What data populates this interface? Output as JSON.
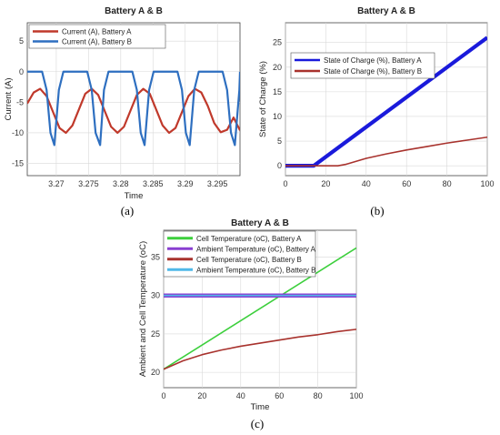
{
  "chart_data": [
    {
      "panel_label": "(a)",
      "type": "line",
      "title": "Battery A & B",
      "xlabel": "Time",
      "ylabel": "Current (A)",
      "xlim": [
        3.2655,
        3.2985
      ],
      "ylim": [
        -17,
        8
      ],
      "xticks": [
        "3.27",
        "3.275",
        "3.28",
        "3.285",
        "3.29",
        "3.295"
      ],
      "yticks": [
        "5",
        "0",
        "-5",
        "-10",
        "-15"
      ],
      "grid": true,
      "legend_position": "top-left",
      "series": [
        {
          "name": "Current (A), Battery A",
          "color": "#c0392b",
          "x": [
            3.2655,
            3.2665,
            3.2675,
            3.2685,
            3.2695,
            3.2705,
            3.2715,
            3.2725,
            3.2735,
            3.2745,
            3.2755,
            3.2765,
            3.2775,
            3.2785,
            3.2795,
            3.2805,
            3.2815,
            3.2825,
            3.2835,
            3.2845,
            3.2855,
            3.2865,
            3.2875,
            3.2885,
            3.2895,
            3.2905,
            3.2915,
            3.2925,
            3.2935,
            3.2945,
            3.2955,
            3.2965,
            3.2975,
            3.2985
          ],
          "y": [
            -5.2,
            -3.4,
            -2.8,
            -4.0,
            -6.6,
            -9.2,
            -10.0,
            -8.8,
            -6.2,
            -3.6,
            -2.8,
            -3.8,
            -6.4,
            -9.0,
            -10.0,
            -9.0,
            -6.4,
            -3.8,
            -2.8,
            -3.6,
            -6.2,
            -8.8,
            -10.0,
            -9.2,
            -6.6,
            -4.0,
            -2.8,
            -3.4,
            -5.6,
            -8.4,
            -9.9,
            -9.5,
            -7.5,
            -9.6
          ]
        },
        {
          "name": "Current (A), Battery B",
          "color": "#2e6fc0",
          "x": [
            3.2655,
            3.2665,
            3.2678,
            3.2685,
            3.2691,
            3.2697,
            3.2704,
            3.2711,
            3.2735,
            3.2748,
            3.2755,
            3.2761,
            3.2768,
            3.2774,
            3.2781,
            3.2805,
            3.2818,
            3.2825,
            3.2831,
            3.2837,
            3.2844,
            3.2851,
            3.2875,
            3.2888,
            3.2895,
            3.2901,
            3.2907,
            3.2914,
            3.2921,
            3.2945,
            3.2958,
            3.2965,
            3.2971,
            3.2977,
            3.2984,
            3.2985
          ],
          "y": [
            0,
            0,
            0,
            -3,
            -10,
            -12,
            -3,
            0,
            0,
            0,
            -3,
            -10,
            -12,
            -3,
            0,
            0,
            0,
            -3,
            -10,
            -12,
            -3,
            0,
            0,
            0,
            -3,
            -10,
            -12,
            -3,
            0,
            0,
            0,
            -3,
            -10,
            -12,
            -3,
            0
          ]
        }
      ]
    },
    {
      "panel_label": "(b)",
      "type": "line",
      "title": "Battery A & B",
      "xlabel": "",
      "ylabel": "State of Charge (%)",
      "xlim": [
        0,
        100
      ],
      "ylim": [
        -2,
        29
      ],
      "xticks": [
        "0",
        "20",
        "40",
        "60",
        "80",
        "100"
      ],
      "yticks": [
        "0",
        "5",
        "10",
        "15",
        "20",
        "25"
      ],
      "grid": true,
      "legend_position": "top-left",
      "series": [
        {
          "name": "State of Charge (%), Battery A",
          "color": "#1a1adb",
          "x": [
            0,
            14,
            100
          ],
          "y": [
            0,
            0,
            26
          ]
        },
        {
          "name": "State of Charge (%), Battery B",
          "color": "#a8322d",
          "x": [
            0,
            26,
            30,
            40,
            50,
            60,
            70,
            80,
            90,
            100
          ],
          "y": [
            0,
            0,
            0.3,
            1.5,
            2.4,
            3.2,
            3.9,
            4.6,
            5.2,
            5.8
          ]
        }
      ]
    },
    {
      "panel_label": "(c)",
      "type": "line",
      "title": "Battery A & B",
      "xlabel": "Time",
      "ylabel": "Ambient and Cell Temperature (oC)",
      "xlim": [
        0,
        100
      ],
      "ylim": [
        18,
        38.5
      ],
      "xticks": [
        "0",
        "20",
        "40",
        "60",
        "80",
        "100"
      ],
      "yticks": [
        "20",
        "25",
        "30",
        "35"
      ],
      "grid": true,
      "legend_position": "top-left",
      "series": [
        {
          "name": "Cell Temperature (oC), Battery A",
          "color": "#3ccf3c",
          "x": [
            0,
            100
          ],
          "y": [
            20.4,
            36.2
          ]
        },
        {
          "name": "Ambient Temperature (oC), Battery A",
          "color": "#8a3fd1",
          "x": [
            0,
            100
          ],
          "y": [
            30,
            30
          ]
        },
        {
          "name": "Cell Temperature (oC), Battery B",
          "color": "#a8322d",
          "x": [
            0,
            10,
            20,
            30,
            40,
            50,
            60,
            70,
            80,
            90,
            100
          ],
          "y": [
            20.4,
            21.5,
            22.3,
            22.9,
            23.4,
            23.8,
            24.2,
            24.6,
            24.9,
            25.3,
            25.6
          ]
        },
        {
          "name": "Ambient Temperature (oC), Battery B",
          "color": "#4fb8e8",
          "x": [
            0,
            100
          ],
          "y": [
            30,
            30
          ]
        }
      ]
    }
  ]
}
